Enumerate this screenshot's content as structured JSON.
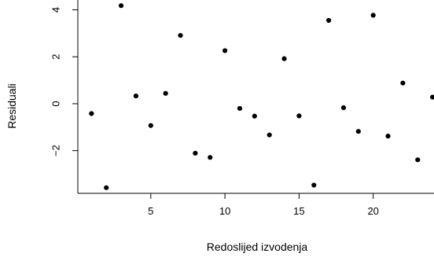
{
  "chart_data": {
    "type": "scatter",
    "title": "",
    "xlabel": "Redoslijed izvodenja",
    "ylabel": "Residuali",
    "xlim": [
      0.08,
      24.1
    ],
    "ylim": [
      -3.82,
      4.42
    ],
    "x_ticks": [
      5,
      10,
      15,
      20
    ],
    "y_ticks": [
      -2,
      0,
      2,
      4
    ],
    "grid": false,
    "legend": "none",
    "point_color": "#000000",
    "series": [
      {
        "x": [
          1,
          2,
          3,
          4,
          5,
          6,
          7,
          8,
          9,
          10,
          11,
          12,
          13,
          14,
          15,
          16,
          17,
          18,
          19,
          20,
          21,
          22,
          23,
          24
        ],
        "y": [
          -0.42,
          -3.58,
          4.18,
          0.33,
          -0.93,
          0.44,
          2.91,
          -2.11,
          -2.29,
          2.26,
          -0.2,
          -0.53,
          -1.33,
          1.92,
          -0.52,
          -3.47,
          3.55,
          -0.17,
          -1.18,
          3.77,
          -1.38,
          0.88,
          -2.39,
          0.28
        ]
      }
    ]
  }
}
